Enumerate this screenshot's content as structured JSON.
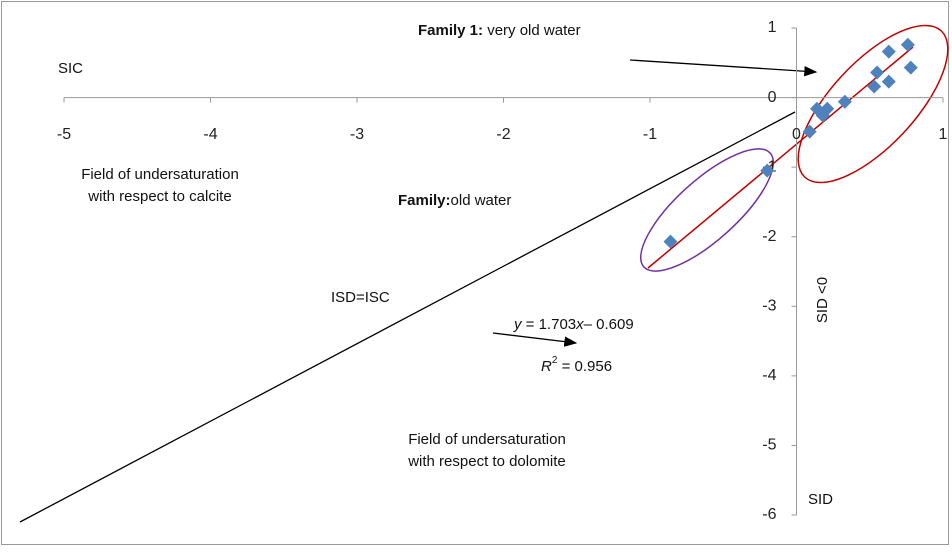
{
  "chart_data": {
    "type": "scatter",
    "x": [
      -0.86,
      -0.2,
      0.09,
      0.14,
      0.18,
      0.21,
      0.33,
      0.53,
      0.55,
      0.63,
      0.63,
      0.76,
      0.78
    ],
    "values": [
      -2.07,
      -1.05,
      -0.49,
      -0.16,
      -0.26,
      -0.16,
      -0.06,
      0.16,
      0.36,
      0.23,
      0.66,
      0.76,
      0.43
    ],
    "color": "#4f81bd",
    "xlim": [
      -5,
      1
    ],
    "ylim": [
      -6,
      1
    ],
    "xticks": [
      -5,
      -4,
      -3,
      -2,
      -1,
      0,
      1
    ],
    "yticks": [
      -6,
      -5,
      -4,
      -3,
      -2,
      -1,
      0,
      1
    ],
    "annotations": {
      "family1": [
        "Family 1:",
        " very old water"
      ],
      "sic": "SIC",
      "calcite": [
        "Field of undersaturation",
        "with respect to calcite"
      ],
      "family2": [
        "Family:",
        "old water"
      ],
      "isd_isc": "ISD=ISC",
      "equation": [
        "y",
        " = 1.703",
        "x",
        "– 0.609"
      ],
      "r2": [
        "R",
        "2",
        " = 0.956"
      ],
      "sid_lt0": "SID <0",
      "dolomite": [
        "Field of undersaturation",
        "with respect to dolomite"
      ],
      "sid": "SID"
    }
  }
}
